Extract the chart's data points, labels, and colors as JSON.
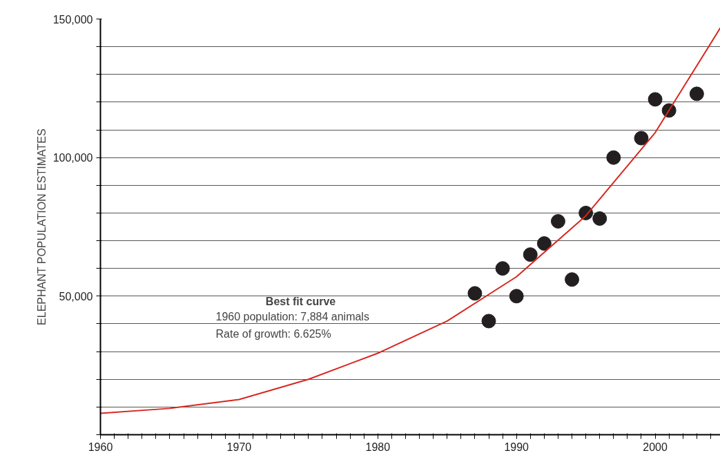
{
  "chart_data": {
    "type": "scatter",
    "ylabel": "ELEPHANT POPULATION ESTIMATES",
    "xlim": [
      1960,
      2004.7
    ],
    "ylim": [
      0,
      150000
    ],
    "xticks": [
      1960,
      {
        "value": 1961,
        "label": null
      },
      {
        "value": 1962,
        "label": null
      },
      {
        "value": 1963,
        "label": null
      },
      {
        "value": 1964,
        "label": null
      },
      {
        "value": 1965,
        "label": null
      },
      {
        "value": 1966,
        "label": null
      },
      {
        "value": 1967,
        "label": null
      },
      {
        "value": 1968,
        "label": null
      },
      {
        "value": 1969,
        "label": null
      },
      1970,
      {
        "value": 1971,
        "label": null
      },
      {
        "value": 1972,
        "label": null
      },
      {
        "value": 1973,
        "label": null
      },
      {
        "value": 1974,
        "label": null
      },
      {
        "value": 1975,
        "label": null
      },
      {
        "value": 1976,
        "label": null
      },
      {
        "value": 1977,
        "label": null
      },
      {
        "value": 1978,
        "label": null
      },
      {
        "value": 1979,
        "label": null
      },
      1980,
      {
        "value": 1981,
        "label": null
      },
      {
        "value": 1982,
        "label": null
      },
      {
        "value": 1983,
        "label": null
      },
      {
        "value": 1984,
        "label": null
      },
      {
        "value": 1985,
        "label": null
      },
      {
        "value": 1986,
        "label": null
      },
      {
        "value": 1987,
        "label": null
      },
      {
        "value": 1988,
        "label": null
      },
      {
        "value": 1989,
        "label": null
      },
      1990,
      {
        "value": 1991,
        "label": null
      },
      {
        "value": 1992,
        "label": null
      },
      {
        "value": 1993,
        "label": null
      },
      {
        "value": 1994,
        "label": null
      },
      {
        "value": 1995,
        "label": null
      },
      {
        "value": 1996,
        "label": null
      },
      {
        "value": 1997,
        "label": null
      },
      {
        "value": 1998,
        "label": null
      },
      {
        "value": 1999,
        "label": null
      },
      2000,
      {
        "value": 2001,
        "label": null
      },
      {
        "value": 2002,
        "label": null
      },
      {
        "value": 2003,
        "label": null
      },
      {
        "value": 2004,
        "label": null
      }
    ],
    "yticks": [
      {
        "value": 0,
        "label": null
      },
      {
        "value": 10000,
        "label": null
      },
      {
        "value": 20000,
        "label": null
      },
      {
        "value": 30000,
        "label": null
      },
      {
        "value": 40000,
        "label": null
      },
      {
        "value": 50000,
        "label": "50,000"
      },
      {
        "value": 60000,
        "label": null
      },
      {
        "value": 70000,
        "label": null
      },
      {
        "value": 80000,
        "label": null
      },
      {
        "value": 90000,
        "label": null
      },
      {
        "value": 100000,
        "label": "100,000"
      },
      {
        "value": 110000,
        "label": null
      },
      {
        "value": 120000,
        "label": null
      },
      {
        "value": 130000,
        "label": null
      },
      {
        "value": 140000,
        "label": null
      },
      {
        "value": 150000,
        "label": "150,000"
      }
    ],
    "grid": "y",
    "marker": "circle",
    "series": [
      {
        "color": "#231f20",
        "x": [
          1987,
          1988,
          1989,
          1990,
          1991,
          1992,
          1993,
          1994,
          1995,
          1996,
          1997,
          1999,
          2000,
          2001,
          2003
        ],
        "values": [
          51000,
          41000,
          60000,
          50000,
          65000,
          69000,
          77000,
          56000,
          80000,
          78000,
          100000,
          107000,
          121000,
          117000,
          123000
        ]
      },
      {
        "type": "line",
        "color": "#d7261e",
        "marker": "none",
        "x": [
          1960,
          1965,
          1970,
          1975,
          1980,
          1985,
          1990,
          1995,
          2000,
          2004.7
        ],
        "values": [
          7700,
          9500,
          12700,
          20000,
          29400,
          41000,
          57000,
          79000,
          109000,
          146800
        ]
      }
    ],
    "annotations": [
      "Best fit curve",
      "1960 population: 7,884 animals",
      "Rate of growth: 6.625%"
    ]
  }
}
